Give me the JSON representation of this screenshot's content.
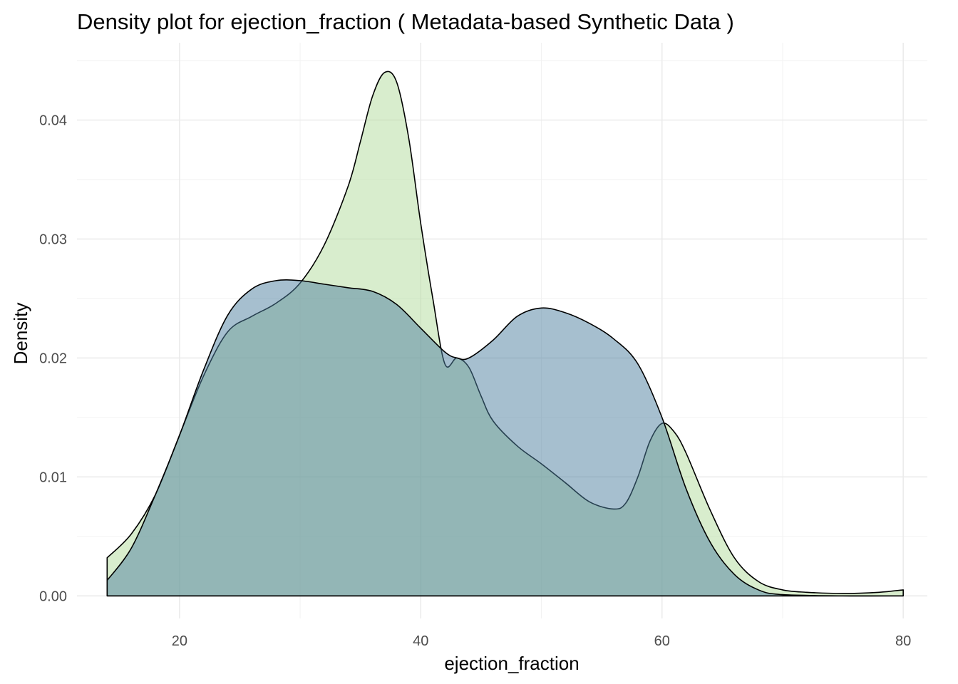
{
  "chart_data": {
    "type": "area",
    "title": "Density plot for ejection_fraction ( Metadata-based Synthetic Data )",
    "xlabel": "ejection_fraction",
    "ylabel": "Density",
    "xlim": [
      11.5,
      82
    ],
    "ylim": [
      -0.0019,
      0.0465
    ],
    "x_ticks": [
      20,
      40,
      60,
      80
    ],
    "x_tick_labels": [
      "20",
      "40",
      "60",
      "80"
    ],
    "y_ticks": [
      0.0,
      0.01,
      0.02,
      0.03,
      0.04
    ],
    "y_tick_labels": [
      "0.00",
      "0.01",
      "0.02",
      "0.03",
      "0.04"
    ],
    "grid": true,
    "legend": "none",
    "series": [
      {
        "color": "#b2dc9c",
        "opacity": 0.5,
        "points": [
          [
            14,
            0.0032
          ],
          [
            16,
            0.0052
          ],
          [
            18,
            0.0085
          ],
          [
            20,
            0.0135
          ],
          [
            22,
            0.0185
          ],
          [
            24,
            0.0222
          ],
          [
            26,
            0.0235
          ],
          [
            28,
            0.0246
          ],
          [
            30,
            0.0263
          ],
          [
            32,
            0.0295
          ],
          [
            34,
            0.0345
          ],
          [
            35,
            0.0382
          ],
          [
            36,
            0.042
          ],
          [
            37,
            0.044
          ],
          [
            38,
            0.0432
          ],
          [
            39,
            0.0385
          ],
          [
            40,
            0.0313
          ],
          [
            41,
            0.025
          ],
          [
            42,
            0.0195
          ],
          [
            43,
            0.02
          ],
          [
            44,
            0.0192
          ],
          [
            45,
            0.0168
          ],
          [
            46,
            0.0147
          ],
          [
            48,
            0.0126
          ],
          [
            50,
            0.0111
          ],
          [
            52,
            0.0095
          ],
          [
            54,
            0.0079
          ],
          [
            56,
            0.0073
          ],
          [
            57,
            0.0078
          ],
          [
            58,
            0.01
          ],
          [
            59,
            0.013
          ],
          [
            60,
            0.0145
          ],
          [
            61,
            0.0138
          ],
          [
            62,
            0.012
          ],
          [
            64,
            0.0072
          ],
          [
            66,
            0.0032
          ],
          [
            68,
            0.0012
          ],
          [
            70,
            0.0005
          ],
          [
            72,
            0.0003
          ],
          [
            75,
            0.0002
          ],
          [
            78,
            0.0003
          ],
          [
            80,
            0.0005
          ]
        ]
      },
      {
        "color": "#4e7fa0",
        "opacity": 0.5,
        "points": [
          [
            14,
            0.0013
          ],
          [
            16,
            0.004
          ],
          [
            18,
            0.0085
          ],
          [
            20,
            0.0135
          ],
          [
            22,
            0.019
          ],
          [
            24,
            0.0236
          ],
          [
            26,
            0.0258
          ],
          [
            28,
            0.0265
          ],
          [
            30,
            0.0265
          ],
          [
            32,
            0.0262
          ],
          [
            34,
            0.0259
          ],
          [
            36,
            0.0256
          ],
          [
            38,
            0.0245
          ],
          [
            40,
            0.0225
          ],
          [
            42,
            0.0205
          ],
          [
            43,
            0.02
          ],
          [
            44,
            0.02
          ],
          [
            46,
            0.0215
          ],
          [
            48,
            0.0235
          ],
          [
            50,
            0.0242
          ],
          [
            52,
            0.0238
          ],
          [
            54,
            0.0229
          ],
          [
            56,
            0.0216
          ],
          [
            58,
            0.0195
          ],
          [
            60,
            0.015
          ],
          [
            62,
            0.009
          ],
          [
            64,
            0.0045
          ],
          [
            66,
            0.0018
          ],
          [
            68,
            0.0005
          ],
          [
            70,
            0.0001
          ],
          [
            75,
            0.0
          ],
          [
            80,
            0.0
          ]
        ]
      }
    ]
  }
}
